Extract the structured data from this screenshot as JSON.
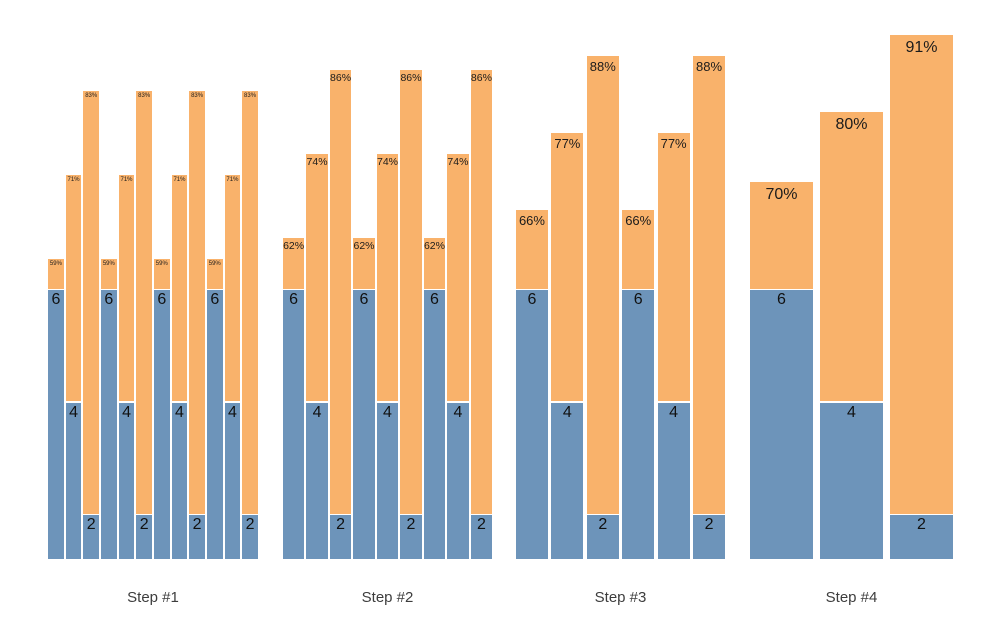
{
  "chart_data": {
    "type": "bar",
    "subtype": "grouped-stacked",
    "title": "",
    "xlabel": "",
    "ylabel": "",
    "axes_visible": false,
    "gridlines": false,
    "legend_position": "none",
    "colors": {
      "count_segment_blue": "#6D94BA",
      "percent_segment_orange": "#F9B26B",
      "label_text": "#1b1b1b",
      "step_label_text": "#3d3d3d",
      "background": "#ffffff"
    },
    "categories": [
      "Step #1",
      "Step #2",
      "Step #3",
      "Step #4"
    ],
    "groups": [
      {
        "label": "Step #1",
        "bars": [
          {
            "count": 6,
            "count_label": "6",
            "pct": 59,
            "pct_label": "59%"
          },
          {
            "count": 4,
            "count_label": "4",
            "pct": 71,
            "pct_label": "71%"
          },
          {
            "count": 2,
            "count_label": "2",
            "pct": 83,
            "pct_label": "83%"
          },
          {
            "count": 6,
            "count_label": "6",
            "pct": 59,
            "pct_label": "59%"
          },
          {
            "count": 4,
            "count_label": "4",
            "pct": 71,
            "pct_label": "71%"
          },
          {
            "count": 2,
            "count_label": "2",
            "pct": 83,
            "pct_label": "83%"
          },
          {
            "count": 6,
            "count_label": "6",
            "pct": 59,
            "pct_label": "59%"
          },
          {
            "count": 4,
            "count_label": "4",
            "pct": 71,
            "pct_label": "71%"
          },
          {
            "count": 2,
            "count_label": "2",
            "pct": 83,
            "pct_label": "83%"
          },
          {
            "count": 6,
            "count_label": "6",
            "pct": 59,
            "pct_label": "59%"
          },
          {
            "count": 4,
            "count_label": "4",
            "pct": 71,
            "pct_label": "71%"
          },
          {
            "count": 2,
            "count_label": "2",
            "pct": 83,
            "pct_label": "83%"
          }
        ]
      },
      {
        "label": "Step #2",
        "bars": [
          {
            "count": 6,
            "count_label": "6",
            "pct": 62,
            "pct_label": "62%"
          },
          {
            "count": 4,
            "count_label": "4",
            "pct": 74,
            "pct_label": "74%"
          },
          {
            "count": 2,
            "count_label": "2",
            "pct": 86,
            "pct_label": "86%"
          },
          {
            "count": 6,
            "count_label": "6",
            "pct": 62,
            "pct_label": "62%"
          },
          {
            "count": 4,
            "count_label": "4",
            "pct": 74,
            "pct_label": "74%"
          },
          {
            "count": 2,
            "count_label": "2",
            "pct": 86,
            "pct_label": "86%"
          },
          {
            "count": 6,
            "count_label": "6",
            "pct": 62,
            "pct_label": "62%"
          },
          {
            "count": 4,
            "count_label": "4",
            "pct": 74,
            "pct_label": "74%"
          },
          {
            "count": 2,
            "count_label": "2",
            "pct": 86,
            "pct_label": "86%"
          }
        ]
      },
      {
        "label": "Step #3",
        "bars": [
          {
            "count": 6,
            "count_label": "6",
            "pct": 66,
            "pct_label": "66%"
          },
          {
            "count": 4,
            "count_label": "4",
            "pct": 77,
            "pct_label": "77%"
          },
          {
            "count": 2,
            "count_label": "2",
            "pct": 88,
            "pct_label": "88%"
          },
          {
            "count": 6,
            "count_label": "6",
            "pct": 66,
            "pct_label": "66%"
          },
          {
            "count": 4,
            "count_label": "4",
            "pct": 77,
            "pct_label": "77%"
          },
          {
            "count": 2,
            "count_label": "2",
            "pct": 88,
            "pct_label": "88%"
          }
        ]
      },
      {
        "label": "Step #4",
        "bars": [
          {
            "count": 6,
            "count_label": "6",
            "pct": 70,
            "pct_label": "70%"
          },
          {
            "count": 4,
            "count_label": "4",
            "pct": 80,
            "pct_label": "80%"
          },
          {
            "count": 2,
            "count_label": "2",
            "pct": 91,
            "pct_label": "91%"
          }
        ]
      }
    ]
  }
}
